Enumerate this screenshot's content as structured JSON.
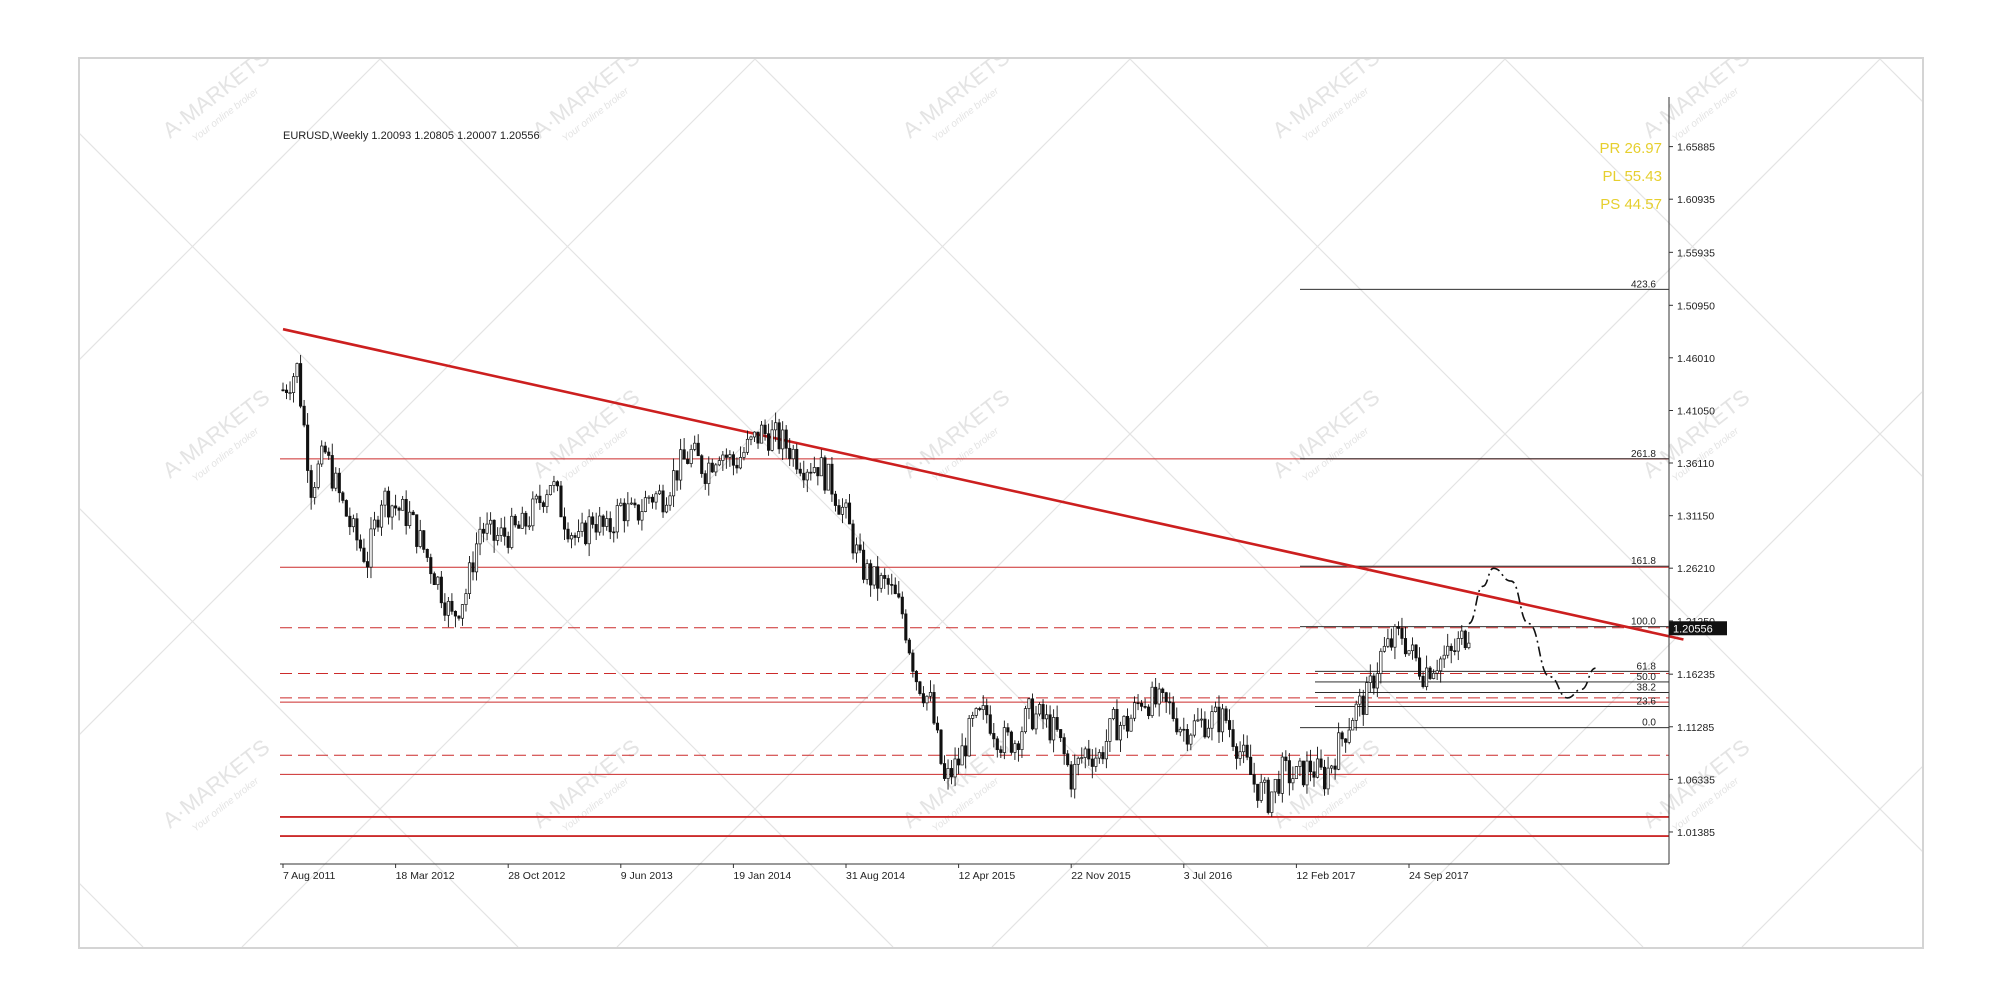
{
  "watermark": {
    "brand": "A·MARKETS",
    "tagline": "Your online broker"
  },
  "chart_data": {
    "type": "candlestick",
    "symbol_label": "EURUSD,Weekly  1.20093 1.20805 1.20007 1.20556",
    "title": "",
    "xlabel": "",
    "ylabel": "",
    "ylim": [
      0.995,
      1.682
    ],
    "current_price": 1.20556,
    "current_price_label": "1.20556",
    "y_ticks": [
      {
        "value": 1.65885,
        "label": "1.65885"
      },
      {
        "value": 1.60935,
        "label": "1.60935"
      },
      {
        "value": 1.55935,
        "label": "1.55935"
      },
      {
        "value": 1.5095,
        "label": "1.50950"
      },
      {
        "value": 1.4601,
        "label": "1.46010"
      },
      {
        "value": 1.4105,
        "label": "1.41050"
      },
      {
        "value": 1.3611,
        "label": "1.36110"
      },
      {
        "value": 1.3115,
        "label": "1.31150"
      },
      {
        "value": 1.2621,
        "label": "1.26210"
      },
      {
        "value": 1.2125,
        "label": "1.21250"
      },
      {
        "value": 1.16235,
        "label": "1.16235"
      },
      {
        "value": 1.11285,
        "label": "1.11285"
      },
      {
        "value": 1.06335,
        "label": "1.06335"
      },
      {
        "value": 1.01385,
        "label": "1.01385"
      }
    ],
    "x_ticks": [
      "7 Aug 2011",
      "18 Mar 2012",
      "28 Oct 2012",
      "9 Jun 2013",
      "19 Jan 2014",
      "31 Aug 2014",
      "12 Apr 2015",
      "22 Nov 2015",
      "3 Jul 2016",
      "12 Feb 2017",
      "24 Sep 2017"
    ],
    "x_tick_dates": [
      "2011-08-07",
      "2012-03-18",
      "2012-10-28",
      "2013-06-09",
      "2014-01-19",
      "2014-08-31",
      "2015-04-12",
      "2015-11-22",
      "2016-07-03",
      "2017-02-12",
      "2017-09-24"
    ],
    "price_path": [
      [
        "2011-08-07",
        1.43
      ],
      [
        "2011-09-04",
        1.45
      ],
      [
        "2011-10-02",
        1.34
      ],
      [
        "2011-10-30",
        1.37
      ],
      [
        "2011-11-27",
        1.33
      ],
      [
        "2011-12-25",
        1.295
      ],
      [
        "2012-01-22",
        1.27
      ],
      [
        "2012-02-19",
        1.33
      ],
      [
        "2012-03-18",
        1.32
      ],
      [
        "2012-04-15",
        1.31
      ],
      [
        "2012-05-13",
        1.28
      ],
      [
        "2012-06-10",
        1.25
      ],
      [
        "2012-07-08",
        1.215
      ],
      [
        "2012-08-05",
        1.24
      ],
      [
        "2012-09-02",
        1.3
      ],
      [
        "2012-09-30",
        1.29
      ],
      [
        "2012-10-28",
        1.295
      ],
      [
        "2012-11-25",
        1.3
      ],
      [
        "2012-12-23",
        1.32
      ],
      [
        "2013-01-20",
        1.345
      ],
      [
        "2013-02-17",
        1.31
      ],
      [
        "2013-03-17",
        1.285
      ],
      [
        "2013-04-14",
        1.31
      ],
      [
        "2013-05-12",
        1.295
      ],
      [
        "2013-06-09",
        1.32
      ],
      [
        "2013-07-07",
        1.31
      ],
      [
        "2013-08-04",
        1.33
      ],
      [
        "2013-09-01",
        1.33
      ],
      [
        "2013-09-29",
        1.355
      ],
      [
        "2013-10-27",
        1.37
      ],
      [
        "2013-11-24",
        1.355
      ],
      [
        "2013-12-22",
        1.375
      ],
      [
        "2014-01-19",
        1.36
      ],
      [
        "2014-02-16",
        1.375
      ],
      [
        "2014-03-16",
        1.39
      ],
      [
        "2014-04-13",
        1.385
      ],
      [
        "2014-05-11",
        1.375
      ],
      [
        "2014-06-08",
        1.36
      ],
      [
        "2014-07-06",
        1.36
      ],
      [
        "2014-08-03",
        1.34
      ],
      [
        "2014-08-31",
        1.31
      ],
      [
        "2014-09-28",
        1.265
      ],
      [
        "2014-10-26",
        1.25
      ],
      [
        "2014-11-23",
        1.245
      ],
      [
        "2014-12-21",
        1.22
      ],
      [
        "2015-01-18",
        1.16
      ],
      [
        "2015-02-15",
        1.135
      ],
      [
        "2015-03-15",
        1.06
      ],
      [
        "2015-04-12",
        1.08
      ],
      [
        "2015-05-10",
        1.115
      ],
      [
        "2015-06-07",
        1.125
      ],
      [
        "2015-07-05",
        1.1
      ],
      [
        "2015-08-02",
        1.1
      ],
      [
        "2015-08-30",
        1.125
      ],
      [
        "2015-09-27",
        1.12
      ],
      [
        "2015-10-25",
        1.105
      ],
      [
        "2015-11-22",
        1.065
      ],
      [
        "2015-12-20",
        1.09
      ],
      [
        "2016-01-17",
        1.085
      ],
      [
        "2016-02-14",
        1.115
      ],
      [
        "2016-03-13",
        1.115
      ],
      [
        "2016-04-10",
        1.14
      ],
      [
        "2016-05-08",
        1.135
      ],
      [
        "2016-06-05",
        1.13
      ],
      [
        "2016-07-03",
        1.11
      ],
      [
        "2016-07-31",
        1.115
      ],
      [
        "2016-08-28",
        1.12
      ],
      [
        "2016-09-25",
        1.12
      ],
      [
        "2016-10-23",
        1.09
      ],
      [
        "2016-11-20",
        1.06
      ],
      [
        "2016-12-18",
        1.045
      ],
      [
        "2017-01-15",
        1.07
      ],
      [
        "2017-02-12",
        1.065
      ],
      [
        "2017-03-12",
        1.075
      ],
      [
        "2017-04-09",
        1.065
      ],
      [
        "2017-05-07",
        1.095
      ],
      [
        "2017-06-04",
        1.125
      ],
      [
        "2017-07-02",
        1.14
      ],
      [
        "2017-07-30",
        1.18
      ],
      [
        "2017-08-27",
        1.195
      ],
      [
        "2017-09-10",
        1.2
      ],
      [
        "2017-09-24",
        1.185
      ],
      [
        "2017-10-22",
        1.165
      ],
      [
        "2017-11-19",
        1.175
      ],
      [
        "2017-12-17",
        1.18
      ],
      [
        "2018-01-07",
        1.195
      ],
      [
        "2018-01-21",
        1.205
      ]
    ],
    "trendline": {
      "from": [
        "2011-08-07",
        1.487
      ],
      "to": [
        "2019-03-24",
        1.195
      ]
    },
    "horizontal_levels": [
      {
        "value": 1.365,
        "style": "solid"
      },
      {
        "value": 1.263,
        "style": "solid"
      },
      {
        "value": 1.206,
        "style": "dashed"
      },
      {
        "value": 1.163,
        "style": "dashed"
      },
      {
        "value": 1.14,
        "style": "dashed"
      },
      {
        "value": 1.136,
        "style": "solid"
      },
      {
        "value": 1.086,
        "style": "dashed"
      },
      {
        "value": 1.068,
        "style": "solid"
      },
      {
        "value": 1.028,
        "style": "solid"
      },
      {
        "value": 1.01,
        "style": "solid"
      }
    ],
    "fibonacci": [
      {
        "label": "423.6",
        "value": 1.5245
      },
      {
        "label": "261.8",
        "value": 1.365
      },
      {
        "label": "161.8",
        "value": 1.264
      },
      {
        "label": "100.0",
        "value": 1.207
      },
      {
        "label": "61.8",
        "value": 1.165
      },
      {
        "label": "50.0",
        "value": 1.155
      },
      {
        "label": "38.2",
        "value": 1.145
      },
      {
        "label": "23.6",
        "value": 1.132
      },
      {
        "label": "0.0",
        "value": 1.112
      }
    ],
    "projection": [
      [
        "2018-01-21",
        1.21
      ],
      [
        "2018-02-18",
        1.245
      ],
      [
        "2018-03-11",
        1.262
      ],
      [
        "2018-04-15",
        1.25
      ],
      [
        "2018-05-20",
        1.21
      ],
      [
        "2018-07-01",
        1.16
      ],
      [
        "2018-08-05",
        1.14
      ],
      [
        "2018-09-02",
        1.148
      ],
      [
        "2018-09-30",
        1.168
      ]
    ],
    "stats": [
      {
        "label": "PR 26.97"
      },
      {
        "label": "PL 55.43"
      },
      {
        "label": "PS 44.57"
      }
    ],
    "colors": {
      "trendline": "#cc1f1f",
      "levels": "#cc2b2b",
      "candles": "#111111",
      "fib": "#111111",
      "stats": "#e6cf2e",
      "price_tag_bg": "#111111",
      "watermark": "#e4e4e4"
    }
  }
}
